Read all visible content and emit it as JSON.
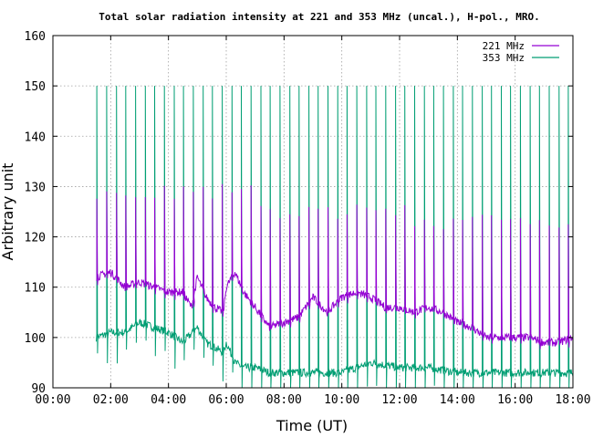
{
  "chart_data": {
    "type": "line",
    "title": "Total solar radiation intensity at 221 and 353 MHz (uncal.), H-pol., MRO.",
    "xlabel": "Time (UT)",
    "ylabel": "Arbitrary unit",
    "xlim": [
      0,
      18
    ],
    "ylim": [
      90,
      160
    ],
    "x_ticks": [
      "00:00",
      "02:00",
      "04:00",
      "06:00",
      "08:00",
      "10:00",
      "12:00",
      "14:00",
      "16:00",
      "18:00"
    ],
    "y_ticks": [
      "90",
      "100",
      "110",
      "120",
      "130",
      "140",
      "150",
      "160"
    ],
    "grid": true,
    "legend_position": "top-right",
    "legend": [
      "221 MHz",
      "353 MHz"
    ],
    "series": [
      {
        "name": "221 MHz",
        "color": "#9400d3",
        "x": [
          1.5,
          2.0,
          2.5,
          3.0,
          3.5,
          4.0,
          4.5,
          4.8,
          5.0,
          5.3,
          5.6,
          5.9,
          6.0,
          6.3,
          6.6,
          7.0,
          7.5,
          8.0,
          8.5,
          9.0,
          9.5,
          10.0,
          10.5,
          11.0,
          11.5,
          12.0,
          12.5,
          13.0,
          13.5,
          14.0,
          14.5,
          15.0,
          15.5,
          16.0,
          16.5,
          17.0,
          17.5,
          18.0
        ],
        "y": [
          112,
          113,
          110,
          111,
          110,
          109,
          109,
          106,
          112,
          108,
          106,
          105,
          110,
          113,
          109,
          106,
          102,
          103,
          104,
          108,
          105,
          108,
          109,
          108,
          106,
          106,
          105,
          106,
          105,
          103,
          102,
          100,
          100,
          100,
          100,
          99,
          99,
          100
        ],
        "spikes": {
          "every_hours": 0.333,
          "peak": [
            129,
            125,
            123
          ]
        }
      },
      {
        "name": "353 MHz",
        "color": "#009e73",
        "x": [
          1.5,
          2.0,
          2.5,
          3.0,
          3.5,
          4.0,
          4.5,
          5.0,
          5.3,
          5.6,
          5.9,
          6.0,
          6.3,
          6.6,
          7.0,
          7.5,
          8.0,
          9.0,
          10.0,
          11.0,
          12.0,
          13.0,
          14.0,
          15.0,
          16.0,
          17.0,
          18.0
        ],
        "y": [
          100,
          101,
          101,
          103,
          102,
          101,
          99,
          102,
          99,
          98,
          97,
          99,
          95,
          94,
          94,
          93,
          93,
          93,
          93,
          95,
          94,
          94,
          93,
          93,
          93,
          93,
          93
        ],
        "spikes": {
          "every_hours": 0.333,
          "peak": 150
        }
      }
    ]
  }
}
